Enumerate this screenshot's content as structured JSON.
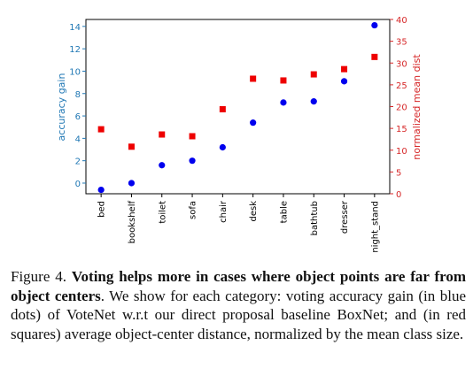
{
  "chart_data": {
    "type": "scatter",
    "categories": [
      "bed",
      "bookshelf",
      "toilet",
      "sofa",
      "chair",
      "desk",
      "table",
      "bathtub",
      "dresser",
      "night_stand"
    ],
    "series": [
      {
        "axis": "left",
        "marker": "circle",
        "color": "#0000ee",
        "values": [
          -0.6,
          0.0,
          1.6,
          2.0,
          3.2,
          5.4,
          7.2,
          7.3,
          9.1,
          14.1
        ]
      },
      {
        "axis": "right",
        "marker": "square",
        "color": "#ee0000",
        "values": [
          14.8,
          10.8,
          13.6,
          13.2,
          19.4,
          26.4,
          26.0,
          27.4,
          28.6,
          31.4
        ]
      }
    ],
    "ylabel": "accuracy gain",
    "ylabel_right": "normalized mean dist",
    "ylim": [
      -0.95,
      14.62
    ],
    "ylim_right": [
      0,
      40
    ],
    "yticks": [
      0,
      2,
      4,
      6,
      8,
      10,
      12,
      14
    ],
    "yticks_right": [
      0,
      5,
      10,
      15,
      20,
      25,
      30,
      35,
      40
    ],
    "left_axis_color": "#1f77b4",
    "right_axis_color": "#d62728",
    "grid": false,
    "legend": "none"
  },
  "caption": {
    "label": "Figure 4.",
    "bold": "Voting helps more in cases where object points are far from object centers",
    "rest": ". We show for each category: voting accuracy gain (in blue dots) of VoteNet w.r.t our direct proposal baseline BoxNet; and (in red squares) average object-center distance, normalized by the mean class size."
  }
}
